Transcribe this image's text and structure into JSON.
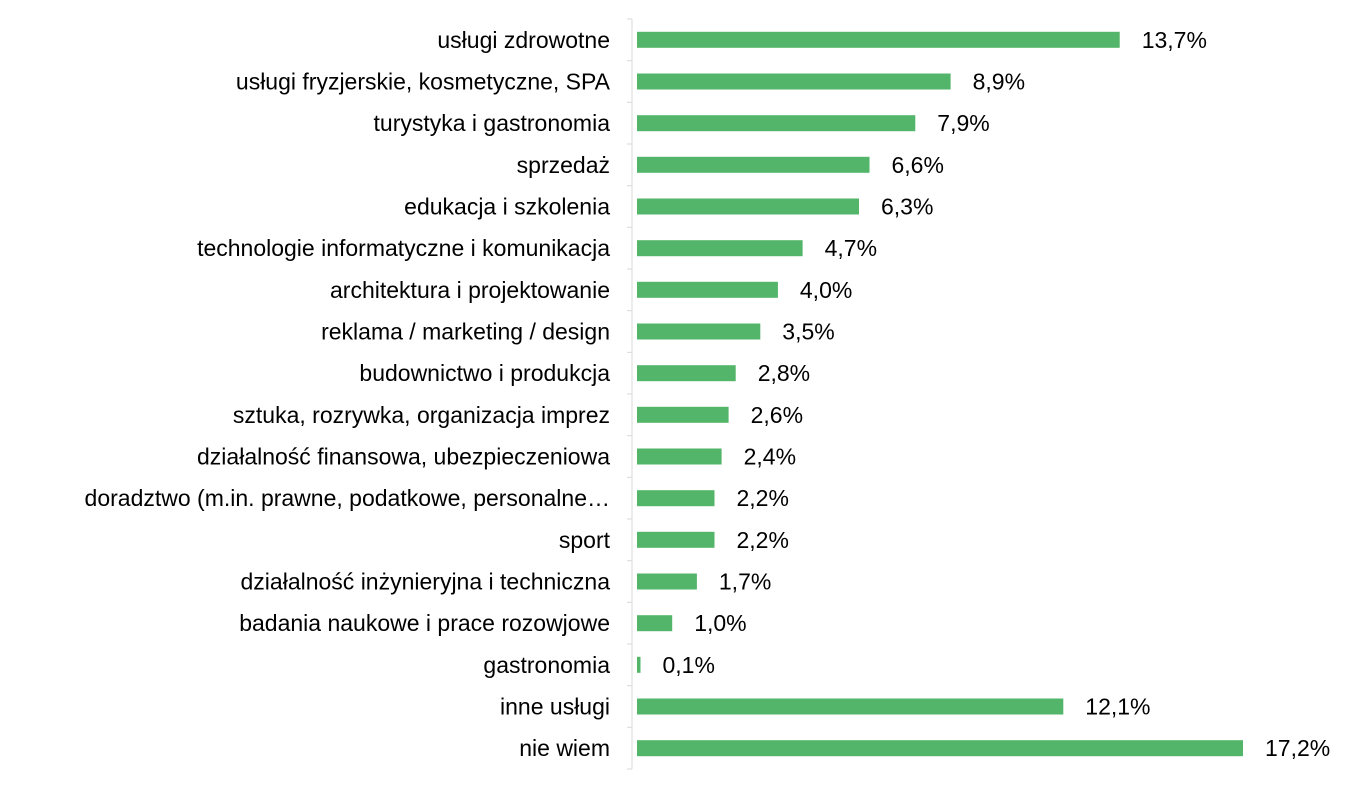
{
  "chart_data": {
    "type": "bar",
    "orientation": "horizontal",
    "categories": [
      "usługi zdrowotne",
      "usługi fryzjerskie, kosmetyczne, SPA",
      "turystyka i gastronomia",
      "sprzedaż",
      "edukacja i szkolenia",
      "technologie informatyczne i komunikacja",
      "architektura i projektowanie",
      "reklama / marketing / design",
      "budownictwo i produkcja",
      "sztuka, rozrywka, organizacja imprez",
      "działalność finansowa, ubezpieczeniowa",
      "doradztwo (m.in. prawne, podatkowe, personalne…",
      "sport",
      "działalność inżynieryjna i techniczna",
      "badania naukowe i prace rozowjowe",
      "gastronomia",
      "inne usługi",
      "nie wiem"
    ],
    "values": [
      13.7,
      8.9,
      7.9,
      6.6,
      6.3,
      4.7,
      4.0,
      3.5,
      2.8,
      2.6,
      2.4,
      2.2,
      2.2,
      1.7,
      1.0,
      0.1,
      12.1,
      17.2
    ],
    "value_labels": [
      "13,7%",
      "8,9%",
      "7,9%",
      "6,6%",
      "6,3%",
      "4,7%",
      "4,0%",
      "3,5%",
      "2,8%",
      "2,6%",
      "2,4%",
      "2,2%",
      "2,2%",
      "1,7%",
      "1,0%",
      "0,1%",
      "12,1%",
      "17,2%"
    ],
    "xlim": [
      0,
      17.2
    ],
    "bar_color": "#52b569",
    "axis_color": "#d9d9d9",
    "grid": false,
    "legend": false
  }
}
